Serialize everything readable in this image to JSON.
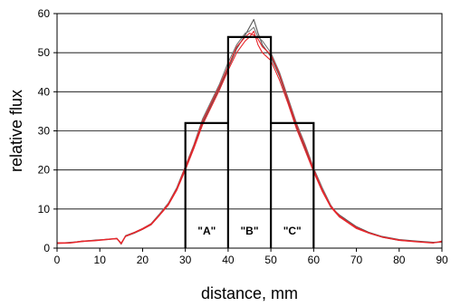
{
  "chart_data": {
    "type": "line",
    "xlabel": "distance,  mm",
    "ylabel": "relative flux",
    "xlim": [
      0,
      90
    ],
    "ylim": [
      0,
      60
    ],
    "xticks": [
      0,
      10,
      20,
      30,
      40,
      50,
      60,
      70,
      80,
      90
    ],
    "yticks": [
      0,
      10,
      20,
      30,
      40,
      50,
      60
    ],
    "grid": "horizontal",
    "legend": "none",
    "colors": {
      "measured_gray": "#666666",
      "measured_red": "#e8262b",
      "steps": "#000000"
    },
    "series": [
      {
        "color": "#555555",
        "x": [
          0,
          3,
          6,
          9,
          12,
          14,
          15,
          16,
          18,
          20,
          22,
          24,
          26,
          28,
          30,
          32,
          34,
          36,
          38,
          40,
          42,
          44,
          45,
          46,
          47,
          48,
          50,
          52,
          54,
          56,
          58,
          60,
          62,
          64,
          66,
          68,
          70,
          73,
          76,
          80,
          84,
          88,
          90
        ],
        "y": [
          1.3,
          1.4,
          1.8,
          2.0,
          2.3,
          2.4,
          1.2,
          3.0,
          3.8,
          4.8,
          6.0,
          8.5,
          11.0,
          15.0,
          20.5,
          26.0,
          32.0,
          36.5,
          41.0,
          46.0,
          51.0,
          54.5,
          56.5,
          58.5,
          55.0,
          52.0,
          49.0,
          44.0,
          37.5,
          31.0,
          25.5,
          20.0,
          15.0,
          10.5,
          8.5,
          7.0,
          5.5,
          4.0,
          3.0,
          2.2,
          1.8,
          1.5,
          1.6
        ]
      },
      {
        "color": "#777777",
        "x": [
          0,
          3,
          6,
          9,
          12,
          14,
          15,
          16,
          18,
          20,
          22,
          24,
          26,
          28,
          30,
          32,
          34,
          36,
          38,
          40,
          42,
          44,
          45,
          46,
          47,
          48,
          50,
          52,
          54,
          56,
          58,
          60,
          62,
          64,
          66,
          68,
          70,
          73,
          76,
          80,
          84,
          88,
          90
        ],
        "y": [
          1.2,
          1.5,
          1.7,
          2.1,
          2.2,
          2.5,
          1.0,
          3.2,
          4.0,
          5.0,
          6.3,
          8.8,
          11.5,
          15.5,
          21.0,
          26.5,
          33.0,
          37.5,
          42.0,
          47.5,
          52.0,
          55.0,
          55.5,
          56.5,
          54.0,
          53.0,
          50.0,
          45.0,
          38.5,
          32.0,
          26.5,
          20.5,
          15.5,
          11.0,
          8.0,
          6.8,
          5.2,
          3.8,
          2.8,
          2.0,
          1.7,
          1.4,
          1.5
        ]
      },
      {
        "color": "#e8262b",
        "x": [
          0,
          3,
          6,
          9,
          12,
          14,
          15,
          16,
          18,
          20,
          22,
          24,
          26,
          28,
          30,
          32,
          34,
          36,
          38,
          40,
          42,
          44,
          45,
          46,
          47,
          48,
          50,
          52,
          54,
          56,
          58,
          60,
          62,
          64,
          66,
          68,
          70,
          73,
          76,
          80,
          84,
          88,
          90
        ],
        "y": [
          1.2,
          1.3,
          1.7,
          1.9,
          2.2,
          2.4,
          1.1,
          3.0,
          3.9,
          4.8,
          6.0,
          8.4,
          11.0,
          14.8,
          20.0,
          25.5,
          31.5,
          36.0,
          40.5,
          45.5,
          50.0,
          53.0,
          54.0,
          55.5,
          52.0,
          50.0,
          48.0,
          43.0,
          37.0,
          30.5,
          25.0,
          19.5,
          14.5,
          10.5,
          8.0,
          6.5,
          5.0,
          3.8,
          2.8,
          2.0,
          1.6,
          1.3,
          1.8
        ]
      },
      {
        "color": "#e8262b",
        "x": [
          0,
          3,
          6,
          9,
          12,
          14,
          15,
          16,
          18,
          20,
          22,
          24,
          26,
          28,
          30,
          32,
          34,
          36,
          38,
          40,
          42,
          44,
          45,
          46,
          47,
          48,
          50,
          52,
          54,
          56,
          58,
          60,
          62,
          64,
          66,
          68,
          70,
          73,
          76,
          80,
          84,
          88,
          90
        ],
        "y": [
          1.4,
          1.4,
          1.8,
          2.0,
          2.3,
          2.5,
          1.3,
          3.1,
          4.0,
          5.0,
          6.2,
          8.6,
          11.3,
          15.2,
          20.8,
          26.2,
          32.5,
          37.0,
          41.5,
          46.5,
          51.5,
          54.0,
          55.0,
          54.5,
          53.5,
          51.5,
          49.5,
          44.5,
          38.0,
          31.5,
          26.0,
          20.2,
          15.0,
          10.8,
          8.3,
          6.7,
          5.3,
          3.9,
          2.9,
          2.1,
          1.7,
          1.4,
          1.6
        ]
      }
    ],
    "step_function": {
      "x": [
        30,
        30,
        40,
        40,
        50,
        50,
        60,
        60
      ],
      "y": [
        0,
        32,
        32,
        54,
        54,
        32,
        32,
        0
      ]
    },
    "regions": [
      {
        "label": "\"A\"",
        "x": 35
      },
      {
        "label": "\"B\"",
        "x": 45
      },
      {
        "label": "\"C\"",
        "x": 55
      }
    ]
  }
}
